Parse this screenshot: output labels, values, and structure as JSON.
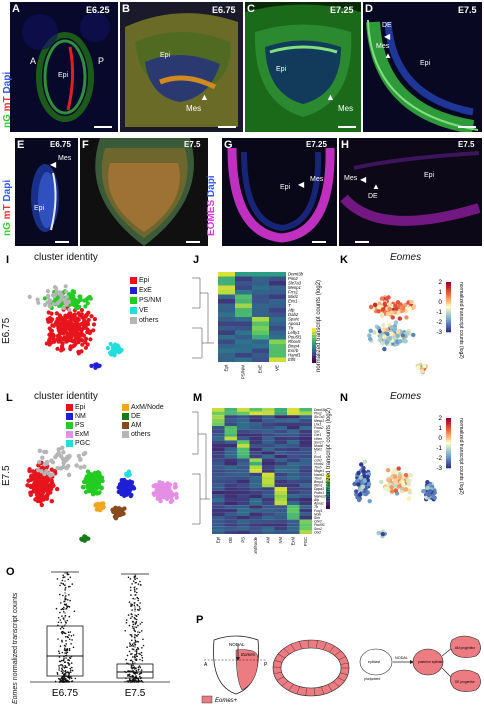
{
  "panels": {
    "A": {
      "label": "A",
      "stage": "E6.25",
      "ant": "A",
      "post": "P",
      "epi": "Epi"
    },
    "B": {
      "label": "B",
      "stage": "E6.75",
      "epi": "Epi",
      "mes": "Mes"
    },
    "C": {
      "label": "C",
      "stage": "E7.25",
      "epi": "Epi",
      "mes": "Mes"
    },
    "D": {
      "label": "D",
      "stage": "E7.5",
      "de": "DE",
      "mes": "Mes",
      "epi": "Epi"
    },
    "E": {
      "label": "E",
      "stage": "E6.75",
      "mes": "Mes",
      "epi": "Epi"
    },
    "F": {
      "label": "F",
      "stage": "E7.5"
    },
    "G": {
      "label": "G",
      "stage": "E7.25",
      "epi": "Epi",
      "mes": "Mes"
    },
    "H": {
      "label": "H",
      "stage": "E7.5",
      "mes": "Mes",
      "de": "DE",
      "epi": "Epi"
    },
    "I": {
      "label": "I",
      "title": "cluster identity",
      "row": "E6.75"
    },
    "J": {
      "label": "J"
    },
    "K": {
      "label": "K",
      "title": "Eomes"
    },
    "L": {
      "label": "L",
      "title": "cluster identity",
      "row": "E7.5"
    },
    "M": {
      "label": "M"
    },
    "N": {
      "label": "N",
      "title": "Eomes"
    },
    "O": {
      "label": "O"
    },
    "P": {
      "label": "P"
    }
  },
  "stain_rows": {
    "top": [
      {
        "text": "nG",
        "color": "#33cc33"
      },
      {
        "text": "mT",
        "color": "#ee3333"
      },
      {
        "text": "Dapi",
        "color": "#3355ff"
      }
    ],
    "middle": [
      {
        "text": "nG",
        "color": "#33cc33"
      },
      {
        "text": "mT",
        "color": "#ee3333"
      },
      {
        "text": "Dapi",
        "color": "#3355ff"
      }
    ],
    "eomes": [
      {
        "text": "EOMES",
        "color": "#dd33dd"
      },
      {
        "text": "Dapi",
        "color": "#3355ff"
      }
    ]
  },
  "legend_I": [
    {
      "name": "Epi",
      "color": "#e8141d"
    },
    {
      "name": "ExE",
      "color": "#1f1fd6"
    },
    {
      "name": "PS/NM",
      "color": "#22cc22"
    },
    {
      "name": "VE",
      "color": "#22dddd"
    },
    {
      "name": "others",
      "color": "#b5b5b5"
    }
  ],
  "legend_L": [
    {
      "name": "Epi",
      "color": "#e8141d"
    },
    {
      "name": "NM",
      "color": "#1f1fd6"
    },
    {
      "name": "PS",
      "color": "#22cc22"
    },
    {
      "name": "ExM",
      "color": "#e58ee5"
    },
    {
      "name": "PGC",
      "color": "#22dddd"
    },
    {
      "name": "AxM/Node",
      "color": "#f2a51e"
    },
    {
      "name": "DE",
      "color": "#1a7a1a"
    },
    {
      "name": "AM",
      "color": "#8a4a1a"
    },
    {
      "name": "others",
      "color": "#b5b5b5"
    }
  ],
  "heatmap_J": {
    "genes": [
      "Dnmt3b",
      "Pim2",
      "Slc7a3",
      "Mesp1",
      "Frrs1",
      "Mixl1",
      "Evx1",
      "T",
      "Afp",
      "Dab2",
      "Sparc",
      "Apoa1",
      "Ttr",
      "Lefty1",
      "Pou5f1",
      "Rhox5",
      "Bmp4",
      "Esrrb",
      "Hand1",
      "Elf5"
    ],
    "clusters": [
      "Epi",
      "PS/NM",
      "ExE",
      "VE"
    ],
    "scale_label": "normalized transcript counts (log2)"
  },
  "heatmap_M": {
    "genes": [
      "Dnmt3b",
      "Pim2",
      "Slc7a3",
      "Mesp1",
      "Lhx1",
      "Foxa2",
      "Gsc",
      "Cer1",
      "Hhex",
      "Sox17",
      "Nodal",
      "Mixl1",
      "T",
      "Evx1",
      "Cdx2",
      "Hoxb1",
      "Tbx6",
      "Msgn1",
      "Hand1",
      "Tbx3",
      "Bmp4",
      "Ifitm1",
      "Dppa3",
      "Prdm1",
      "Nanos3",
      "Afp",
      "Apoa1",
      "Ttr",
      "Foxj1",
      "Noto",
      "Shh",
      "Chrd",
      "Pou5f1",
      "Sox2",
      "Otx2"
    ],
    "clusters": [
      "Epi",
      "DE",
      "PS",
      "AxM/Node",
      "AM",
      "NM",
      "ExM",
      "PGC"
    ],
    "scale_label": "normalized transcript counts (log2)"
  },
  "feature_scale": {
    "ticks": [
      "2",
      "1",
      "0",
      "-1",
      "-2",
      "-3"
    ],
    "label": "normalized transcript counts (log2)"
  },
  "boxplot": {
    "ylabel_gene": "Eomes",
    "ylabel_rest": "normalized transcript counts",
    "categories": [
      "E6.75",
      "E7.5"
    ]
  },
  "schematic": {
    "nodal": "NODAL",
    "eomes": "Eomes",
    "ant": "A",
    "post": "P",
    "legend": "Eomes+",
    "nodes": [
      "epiblast",
      "posterior epiblast",
      "AM progenitor",
      "DE progenitor"
    ],
    "pluripotent": "pluripotent",
    "arrow_label": "NODAL"
  },
  "colors": {
    "magenta": "#dd33dd",
    "pink": "#ec7b82"
  }
}
